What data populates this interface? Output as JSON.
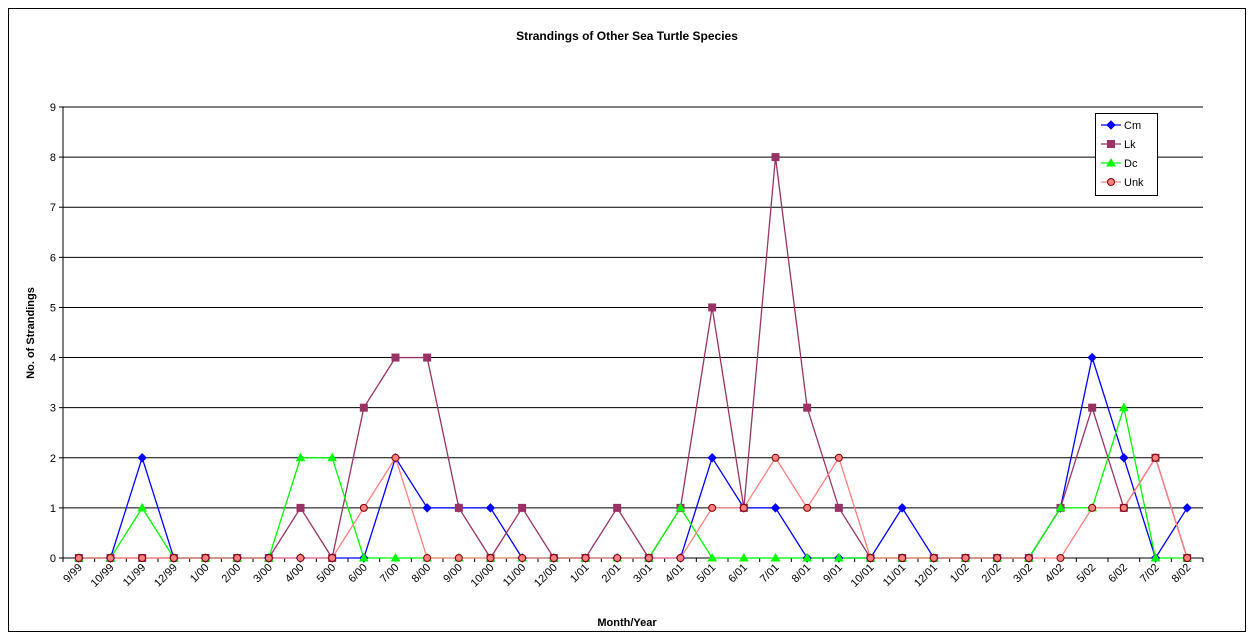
{
  "chart_data": {
    "type": "line",
    "title": "Strandings of Other Sea Turtle Species",
    "xlabel": "Month/Year",
    "ylabel": "No. of Strandings",
    "categories": [
      "9/99",
      "10/99",
      "11/99",
      "12/99",
      "1/00",
      "2/00",
      "3/00",
      "4/00",
      "5/00",
      "6/00",
      "7/00",
      "8/00",
      "9/00",
      "10/00",
      "11/00",
      "12/00",
      "1/01",
      "2/01",
      "3/01",
      "4/01",
      "5/01",
      "6/01",
      "7/01",
      "8/01",
      "9/01",
      "10/01",
      "11/01",
      "12/01",
      "1/02",
      "2/02",
      "3/02",
      "4/02",
      "5/02",
      "6/02",
      "7/02",
      "8/02"
    ],
    "series": [
      {
        "name": "Cm",
        "color": "#0000ff",
        "marker": "diamond",
        "values": [
          0,
          0,
          2,
          0,
          0,
          0,
          0,
          0,
          0,
          0,
          2,
          1,
          1,
          1,
          0,
          0,
          0,
          0,
          0,
          0,
          2,
          1,
          1,
          0,
          0,
          0,
          1,
          0,
          0,
          0,
          0,
          1,
          4,
          2,
          0,
          1
        ]
      },
      {
        "name": "Lk",
        "color": "#993366",
        "marker": "square",
        "values": [
          0,
          0,
          0,
          0,
          0,
          0,
          0,
          1,
          0,
          3,
          4,
          4,
          1,
          0,
          1,
          0,
          0,
          1,
          0,
          1,
          5,
          1,
          8,
          3,
          1,
          0,
          0,
          0,
          0,
          0,
          0,
          1,
          3,
          1,
          2,
          0
        ]
      },
      {
        "name": "Dc",
        "color": "#00ff00",
        "marker": "triangle",
        "values": [
          0,
          0,
          1,
          0,
          0,
          0,
          0,
          2,
          2,
          0,
          0,
          0,
          0,
          0,
          0,
          0,
          0,
          0,
          0,
          1,
          0,
          0,
          0,
          0,
          0,
          0,
          0,
          0,
          0,
          0,
          0,
          1,
          1,
          3,
          0,
          0
        ]
      },
      {
        "name": "Unk",
        "color": "#ff8080",
        "marker": "circle",
        "values": [
          0,
          0,
          0,
          0,
          0,
          0,
          0,
          0,
          0,
          1,
          2,
          0,
          0,
          0,
          0,
          0,
          0,
          0,
          0,
          0,
          1,
          1,
          2,
          1,
          2,
          0,
          0,
          0,
          0,
          0,
          0,
          0,
          1,
          1,
          2,
          0
        ]
      }
    ],
    "ylim": [
      0,
      9
    ],
    "yticks": [
      0,
      1,
      2,
      3,
      4,
      5,
      6,
      7,
      8,
      9
    ],
    "grid": true,
    "legend": "top-right"
  }
}
